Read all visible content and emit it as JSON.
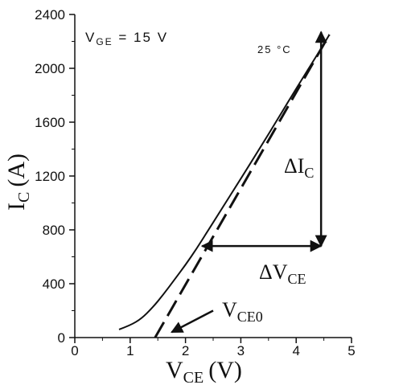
{
  "chart_data": {
    "type": "line",
    "xlabel": {
      "main": "V",
      "sub": "CE",
      "unit": "(V)"
    },
    "ylabel": {
      "main": "I",
      "sub": "C",
      "unit": "(A)"
    },
    "xlim": [
      0,
      5
    ],
    "ylim": [
      0,
      2400
    ],
    "x_ticks": [
      "0",
      "1",
      "2",
      "3",
      "4",
      "5"
    ],
    "x_tick_values": [
      0,
      1,
      2,
      3,
      4,
      5
    ],
    "y_ticks": [
      "0",
      "400",
      "800",
      "1200",
      "1600",
      "2000",
      "2400"
    ],
    "y_tick_values": [
      0,
      400,
      800,
      1200,
      1600,
      2000,
      2400
    ],
    "grid": false,
    "series": [
      {
        "style": "solid",
        "x": [
          0.8,
          1.0,
          1.2,
          1.4,
          1.6,
          1.8,
          2.0,
          2.2,
          2.4,
          2.6,
          3.0,
          3.5,
          4.0,
          4.5,
          4.6
        ],
        "y": [
          60,
          90,
          140,
          220,
          320,
          430,
          540,
          660,
          790,
          920,
          1180,
          1510,
          1850,
          2180,
          2250
        ]
      },
      {
        "style": "dashed",
        "x": [
          1.45,
          4.6
        ],
        "y": [
          0,
          2250
        ]
      }
    ],
    "annotations": {
      "condition": {
        "main": "V",
        "sub": "GE",
        "rest": " = 15 V"
      },
      "temperature": "25 °C",
      "delta_ic": {
        "main": "ΔI",
        "sub": "C"
      },
      "delta_vce": {
        "main": "ΔV",
        "sub": "CE"
      },
      "vce0": {
        "main": "V",
        "sub": "CE0"
      }
    },
    "arrows": {
      "delta_ic": {
        "x": 4.45,
        "y_from": 2270,
        "y_to": 680
      },
      "delta_vce": {
        "y": 680,
        "x_from": 2.3,
        "x_to": 4.45
      },
      "vce0_pointer": {
        "x_from": 2.5,
        "y_from": 200,
        "x_to": 1.75,
        "y_to": 40
      }
    }
  }
}
